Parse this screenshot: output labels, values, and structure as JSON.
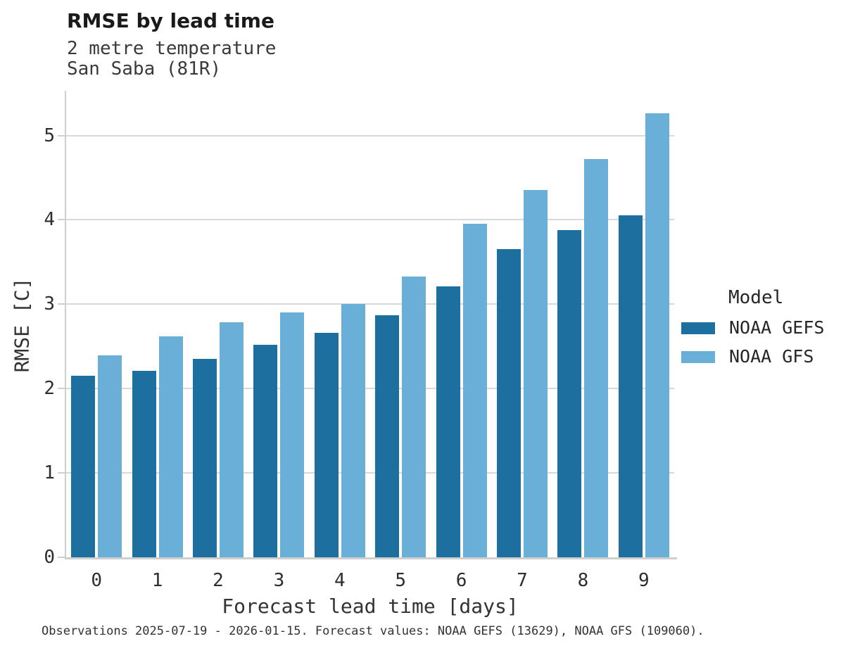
{
  "header": {
    "title": "RMSE by lead time",
    "subtitle_line1": "2 metre temperature",
    "subtitle_line2": "San Saba (81R)"
  },
  "legend": {
    "title": "Model",
    "items": [
      {
        "label": "NOAA GEFS",
        "color": "#1c6f9f"
      },
      {
        "label": "NOAA GFS",
        "color": "#69afd8"
      }
    ]
  },
  "footer": {
    "note": "Observations 2025-07-19 - 2026-01-15. Forecast values: NOAA GEFS (13629), NOAA GFS (109060)."
  },
  "chart_data": {
    "type": "bar",
    "title": "RMSE by lead time",
    "subtitle": [
      "2 metre temperature",
      "San Saba (81R)"
    ],
    "xlabel": "Forecast lead time [days]",
    "ylabel": "RMSE [C]",
    "categories": [
      0,
      1,
      2,
      3,
      4,
      5,
      6,
      7,
      8,
      9
    ],
    "series": [
      {
        "name": "NOAA GEFS",
        "color": "#1c6f9f",
        "values": [
          2.15,
          2.21,
          2.35,
          2.52,
          2.66,
          2.87,
          3.21,
          3.65,
          3.88,
          4.05
        ]
      },
      {
        "name": "NOAA GFS",
        "color": "#69afd8",
        "values": [
          2.39,
          2.62,
          2.79,
          2.9,
          3.0,
          3.33,
          3.95,
          4.35,
          4.72,
          5.26
        ]
      }
    ],
    "ylim": [
      0,
      5.53
    ],
    "yticks": [
      0,
      1,
      2,
      3,
      4,
      5
    ],
    "grid": "horizontal",
    "legend_position": "right",
    "legend_title": "Model"
  }
}
